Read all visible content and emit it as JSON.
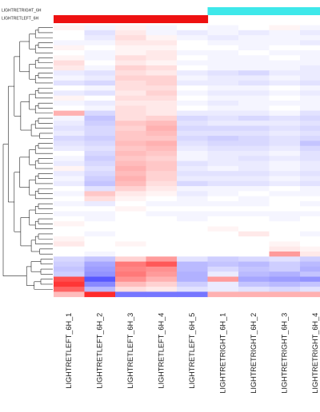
{
  "chart_data": {
    "type": "heatmap",
    "title": "",
    "annotation_labels": [
      "LIGHTRETRIGHT_6H",
      "LIGHTRETLEFT_6H"
    ],
    "annotation_colors": {
      "LIGHTRETRIGHT_6H": "#3ee8ea",
      "LIGHTRETLEFT_6H": "#ee1111"
    },
    "columns": [
      "LIGHTRETLEFT_6H_1",
      "LIGHTRETLEFT_6H_2",
      "LIGHTRETLEFT_6H_3",
      "LIGHTRETLEFT_6H_4",
      "LIGHTRETLEFT_6H_5",
      "LIGHTRETRIGHT_6H_1",
      "LIGHTRETRIGHT_6H_2",
      "LIGHTRETRIGHT_6H_3",
      "LIGHTRETRIGHT_6H_4"
    ],
    "column_group": [
      "LIGHTRETLEFT_6H",
      "LIGHTRETLEFT_6H",
      "LIGHTRETLEFT_6H",
      "LIGHTRETLEFT_6H",
      "LIGHTRETLEFT_6H",
      "LIGHTRETRIGHT_6H",
      "LIGHTRETRIGHT_6H",
      "LIGHTRETRIGHT_6H",
      "LIGHTRETRIGHT_6H"
    ],
    "color_scale": {
      "low": "#3b3bff",
      "mid": "#ffffff",
      "high": "#ff2020",
      "range": [
        -1,
        1
      ]
    },
    "values": [
      [
        0.05,
        -0.05,
        0.05,
        -0.05,
        0.0,
        -0.05,
        0.0,
        0.05,
        -0.05
      ],
      [
        0.0,
        -0.15,
        0.1,
        -0.05,
        -0.1,
        -0.05,
        -0.1,
        -0.05,
        -0.1
      ],
      [
        0.0,
        -0.1,
        0.15,
        0.05,
        -0.05,
        -0.1,
        -0.05,
        -0.05,
        -0.05
      ],
      [
        -0.05,
        -0.05,
        0.1,
        0.1,
        0.0,
        -0.05,
        -0.05,
        -0.05,
        -0.1
      ],
      [
        0.05,
        0.0,
        0.05,
        0.05,
        0.0,
        0.0,
        -0.05,
        0.0,
        0.0
      ],
      [
        0.0,
        -0.05,
        0.05,
        0.1,
        -0.05,
        -0.05,
        0.0,
        -0.05,
        -0.05
      ],
      [
        0.05,
        -0.05,
        0.15,
        0.1,
        0.0,
        -0.05,
        -0.05,
        0.0,
        -0.05
      ],
      [
        0.15,
        0.0,
        0.1,
        0.05,
        -0.05,
        -0.05,
        -0.05,
        -0.05,
        -0.05
      ],
      [
        0.1,
        -0.05,
        0.2,
        0.15,
        0.0,
        -0.05,
        -0.05,
        -0.05,
        -0.1
      ],
      [
        -0.1,
        -0.15,
        0.15,
        0.1,
        -0.1,
        -0.15,
        -0.2,
        -0.1,
        -0.1
      ],
      [
        -0.05,
        -0.1,
        0.2,
        0.2,
        -0.05,
        -0.1,
        -0.1,
        -0.05,
        -0.1
      ],
      [
        -0.15,
        -0.2,
        0.15,
        0.2,
        -0.1,
        -0.1,
        -0.15,
        -0.1,
        -0.15
      ],
      [
        0.0,
        -0.05,
        0.15,
        0.15,
        0.0,
        -0.05,
        -0.05,
        0.0,
        -0.05
      ],
      [
        -0.1,
        -0.15,
        0.1,
        0.2,
        -0.05,
        -0.1,
        -0.1,
        -0.05,
        -0.1
      ],
      [
        0.05,
        0.0,
        0.15,
        0.15,
        0.0,
        -0.05,
        -0.05,
        0.0,
        -0.05
      ],
      [
        -0.05,
        -0.1,
        0.1,
        0.1,
        -0.05,
        -0.1,
        -0.05,
        -0.05,
        -0.05
      ],
      [
        0.0,
        -0.05,
        0.15,
        0.1,
        0.0,
        -0.05,
        -0.05,
        0.0,
        -0.05
      ],
      [
        0.35,
        -0.2,
        0.15,
        0.1,
        -0.1,
        -0.1,
        -0.1,
        -0.05,
        -0.15
      ],
      [
        -0.05,
        -0.3,
        0.15,
        0.2,
        -0.2,
        -0.15,
        -0.2,
        -0.15,
        -0.2
      ],
      [
        -0.1,
        -0.25,
        0.25,
        0.3,
        -0.15,
        -0.1,
        -0.1,
        -0.1,
        -0.15
      ],
      [
        -0.15,
        -0.2,
        0.2,
        0.35,
        -0.2,
        -0.2,
        -0.2,
        -0.15,
        -0.2
      ],
      [
        -0.1,
        -0.2,
        0.25,
        0.3,
        -0.15,
        -0.15,
        -0.15,
        -0.1,
        -0.15
      ],
      [
        -0.2,
        -0.25,
        0.25,
        0.25,
        -0.2,
        -0.25,
        -0.2,
        -0.15,
        -0.2
      ],
      [
        -0.15,
        -0.2,
        0.3,
        0.35,
        -0.15,
        -0.2,
        -0.2,
        -0.15,
        -0.3
      ],
      [
        -0.1,
        -0.15,
        0.25,
        0.3,
        -0.1,
        -0.15,
        -0.15,
        -0.1,
        -0.2
      ],
      [
        0.0,
        -0.2,
        0.3,
        0.25,
        -0.05,
        -0.1,
        -0.1,
        -0.05,
        -0.15
      ],
      [
        -0.05,
        -0.25,
        0.25,
        0.2,
        -0.05,
        -0.1,
        -0.15,
        -0.1,
        -0.15
      ],
      [
        -0.1,
        -0.2,
        0.3,
        0.25,
        -0.15,
        -0.1,
        -0.1,
        -0.05,
        -0.1
      ],
      [
        0.05,
        -0.15,
        0.35,
        0.25,
        -0.1,
        -0.05,
        -0.1,
        -0.05,
        -0.1
      ],
      [
        -0.1,
        -0.2,
        0.3,
        0.2,
        -0.15,
        -0.15,
        -0.15,
        -0.1,
        -0.15
      ],
      [
        -0.05,
        -0.25,
        0.35,
        0.2,
        -0.1,
        -0.1,
        -0.1,
        -0.05,
        -0.1
      ],
      [
        -0.1,
        -0.3,
        0.3,
        0.15,
        -0.2,
        -0.15,
        -0.15,
        -0.1,
        -0.15
      ],
      [
        0.0,
        -0.15,
        0.2,
        0.1,
        -0.05,
        -0.05,
        -0.05,
        0.0,
        -0.05
      ],
      [
        -0.05,
        0.25,
        0.1,
        0.05,
        -0.1,
        -0.05,
        0.0,
        -0.05,
        -0.05
      ],
      [
        0.0,
        0.15,
        0.05,
        0.0,
        -0.05,
        0.0,
        -0.05,
        0.0,
        0.0
      ],
      [
        -0.05,
        -0.1,
        0.0,
        -0.05,
        -0.05,
        -0.05,
        -0.05,
        0.0,
        -0.05
      ],
      [
        0.0,
        0.0,
        0.05,
        0.0,
        0.0,
        0.0,
        0.0,
        0.0,
        0.0
      ],
      [
        -0.05,
        -0.05,
        0.0,
        -0.05,
        -0.05,
        -0.05,
        -0.05,
        -0.05,
        -0.05
      ],
      [
        0.0,
        -0.05,
        0.0,
        0.0,
        -0.05,
        0.0,
        0.0,
        -0.05,
        0.0
      ],
      [
        0.05,
        0.0,
        0.0,
        0.0,
        0.0,
        0.0,
        0.0,
        0.0,
        0.0
      ],
      [
        0.0,
        0.0,
        0.0,
        0.0,
        0.0,
        0.05,
        0.0,
        0.0,
        0.0
      ],
      [
        0.0,
        -0.05,
        0.0,
        0.0,
        0.0,
        0.0,
        0.1,
        0.0,
        -0.05
      ],
      [
        0.05,
        0.0,
        0.0,
        0.0,
        0.0,
        0.0,
        0.0,
        0.0,
        0.0
      ],
      [
        0.1,
        0.0,
        0.05,
        0.0,
        0.0,
        0.0,
        0.0,
        0.05,
        0.0
      ],
      [
        0.0,
        0.0,
        0.0,
        0.0,
        0.0,
        0.0,
        0.0,
        0.1,
        0.05
      ],
      [
        0.0,
        -0.05,
        0.0,
        0.0,
        0.0,
        0.0,
        0.0,
        0.45,
        0.1
      ],
      [
        -0.2,
        -0.3,
        0.2,
        0.45,
        -0.15,
        -0.25,
        -0.2,
        -0.15,
        -0.25
      ],
      [
        -0.25,
        -0.45,
        0.6,
        0.75,
        -0.35,
        -0.3,
        -0.35,
        -0.25,
        -0.35
      ],
      [
        -0.3,
        -0.5,
        0.55,
        0.5,
        -0.35,
        -0.2,
        -0.3,
        -0.25,
        -0.4
      ],
      [
        -0.25,
        -0.55,
        0.6,
        0.45,
        -0.4,
        -0.1,
        -0.35,
        -0.4,
        -0.3
      ],
      [
        0.8,
        -0.85,
        0.5,
        0.35,
        -0.4,
        0.45,
        -0.45,
        -0.5,
        -0.55
      ],
      [
        0.9,
        -0.6,
        0.3,
        0.2,
        -0.25,
        -0.1,
        -0.3,
        -0.35,
        -0.3
      ],
      [
        0.7,
        -0.35,
        0.15,
        0.1,
        -0.15,
        -0.1,
        -0.15,
        -0.2,
        -0.15
      ],
      [
        0.3,
        0.95,
        -0.7,
        -0.7,
        -0.7,
        0.35,
        0.35,
        0.35,
        0.35
      ]
    ],
    "row_dendrogram": true
  }
}
